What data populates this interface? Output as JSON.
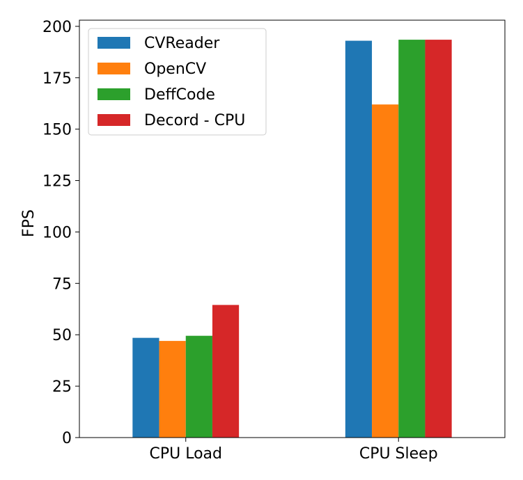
{
  "chart_data": {
    "type": "bar",
    "categories": [
      "CPU Load",
      "CPU Sleep"
    ],
    "series": [
      {
        "name": "CVReader",
        "values": [
          48.5,
          193
        ],
        "color": "#1f77b4"
      },
      {
        "name": "OpenCV",
        "values": [
          47,
          162
        ],
        "color": "#ff7f0e"
      },
      {
        "name": "DeffCode",
        "values": [
          49.5,
          193.5
        ],
        "color": "#2ca02c"
      },
      {
        "name": "Decord - CPU",
        "values": [
          64.5,
          193.5
        ],
        "color": "#d62728"
      }
    ],
    "title": "",
    "xlabel": "",
    "ylabel": "FPS",
    "ylim": [
      0,
      203
    ],
    "yticks": [
      0,
      25,
      50,
      75,
      100,
      125,
      150,
      175,
      200
    ],
    "grid": false,
    "legend_position": "top-left"
  }
}
